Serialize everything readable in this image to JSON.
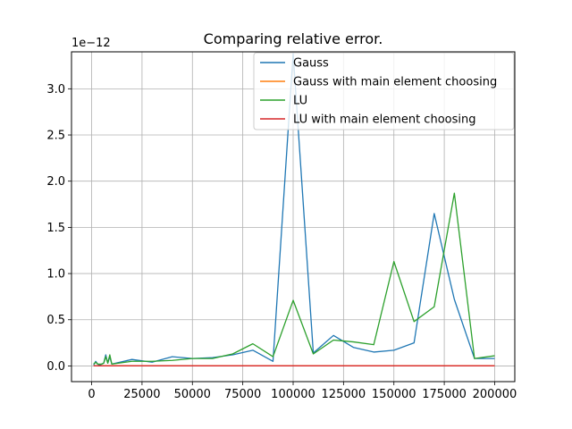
{
  "chart_data": {
    "type": "line",
    "title": "Comparing relative error.",
    "xlabel": "",
    "ylabel": "",
    "y_scale_label": "1e−12",
    "xlim": [
      -10000,
      210000
    ],
    "ylim": [
      -0.17,
      3.4
    ],
    "x_ticks": [
      0,
      25000,
      50000,
      75000,
      100000,
      125000,
      150000,
      175000,
      200000
    ],
    "x_tick_labels": [
      "0",
      "25000",
      "50000",
      "75000",
      "100000",
      "125000",
      "150000",
      "175000",
      "200000"
    ],
    "y_ticks": [
      0.0,
      0.5,
      1.0,
      1.5,
      2.0,
      2.5,
      3.0
    ],
    "y_tick_labels": [
      "0.0",
      "0.5",
      "1.0",
      "1.5",
      "2.0",
      "2.5",
      "3.0"
    ],
    "grid": true,
    "legend_position": "top-right",
    "x": [
      1000,
      2000,
      3000,
      4000,
      5000,
      6000,
      7000,
      8000,
      9000,
      10000,
      20000,
      30000,
      40000,
      50000,
      60000,
      70000,
      80000,
      90000,
      100000,
      110000,
      120000,
      130000,
      140000,
      150000,
      160000,
      170000,
      180000,
      190000,
      200000
    ],
    "series": [
      {
        "name": "Gauss",
        "color": "#1f77b4",
        "values": [
          0.01,
          0.05,
          0.02,
          0.01,
          0.02,
          0.03,
          0.12,
          0.03,
          0.1,
          0.02,
          0.07,
          0.04,
          0.1,
          0.08,
          0.09,
          0.12,
          0.17,
          0.05,
          3.38,
          0.14,
          0.33,
          0.2,
          0.15,
          0.17,
          0.25,
          1.65,
          0.72,
          0.08,
          0.08
        ]
      },
      {
        "name": "Gauss with main element choosing",
        "color": "#ff7f0e",
        "values": [
          0.001,
          0.001,
          0.001,
          0.001,
          0.001,
          0.001,
          0.001,
          0.001,
          0.001,
          0.001,
          0.001,
          0.001,
          0.001,
          0.001,
          0.001,
          0.001,
          0.001,
          0.001,
          0.001,
          0.001,
          0.001,
          0.001,
          0.001,
          0.001,
          0.001,
          0.001,
          0.001,
          0.001,
          0.001
        ]
      },
      {
        "name": "LU",
        "color": "#2ca02c",
        "values": [
          0.02,
          0.04,
          0.02,
          0.02,
          0.02,
          0.03,
          0.1,
          0.03,
          0.12,
          0.02,
          0.05,
          0.05,
          0.06,
          0.08,
          0.08,
          0.13,
          0.24,
          0.1,
          0.71,
          0.13,
          0.28,
          0.26,
          0.23,
          1.13,
          0.48,
          0.64,
          1.87,
          0.08,
          0.11
        ]
      },
      {
        "name": "LU with main element choosing",
        "color": "#d62728",
        "values": [
          0.001,
          0.001,
          0.001,
          0.001,
          0.001,
          0.001,
          0.001,
          0.001,
          0.001,
          0.001,
          0.001,
          0.001,
          0.001,
          0.001,
          0.001,
          0.001,
          0.001,
          0.001,
          0.001,
          0.001,
          0.001,
          0.001,
          0.001,
          0.001,
          0.001,
          0.001,
          0.001,
          0.001,
          0.001
        ]
      }
    ]
  }
}
